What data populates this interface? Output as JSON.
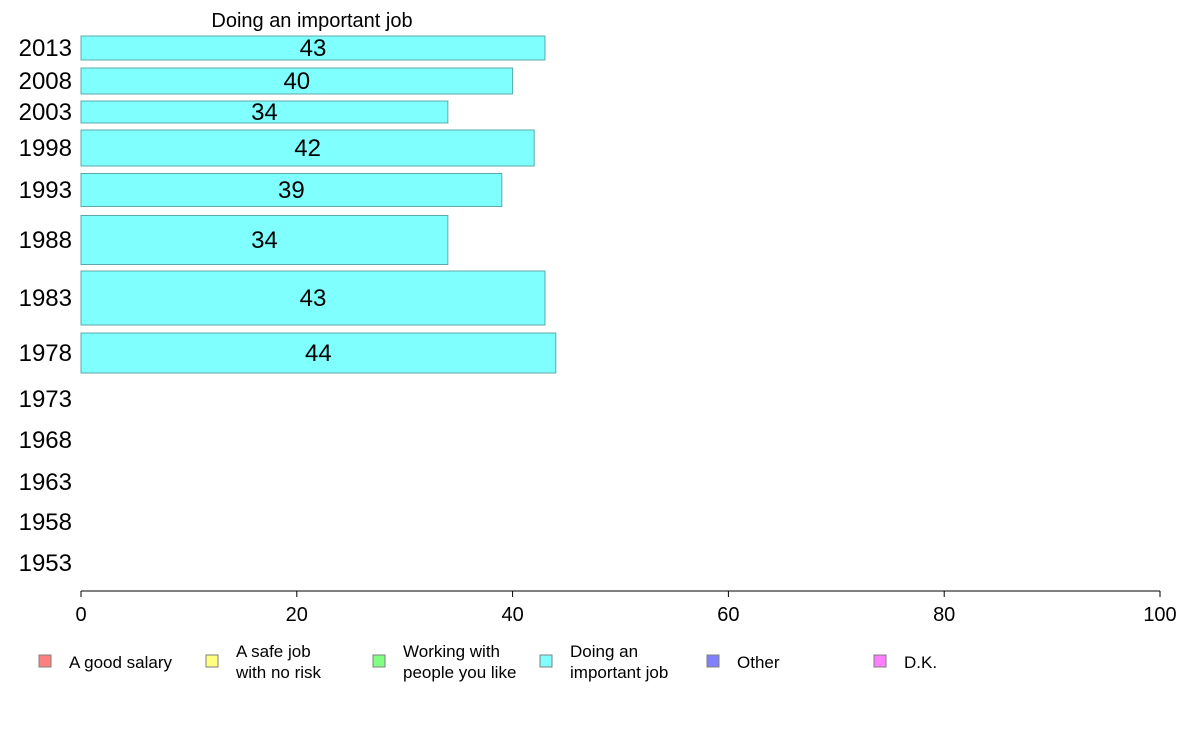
{
  "chart_data": {
    "type": "bar",
    "orientation": "horizontal",
    "title": "Doing an important job",
    "xlabel": "",
    "ylabel": "",
    "xlim": [
      0,
      100
    ],
    "x_ticks": [
      0,
      20,
      40,
      60,
      80,
      100
    ],
    "categories": [
      "2013",
      "2008",
      "2003",
      "1998",
      "1993",
      "1988",
      "1983",
      "1978",
      "1973",
      "1968",
      "1963",
      "1958",
      "1953"
    ],
    "series": [
      {
        "name": "Doing an important job",
        "color": "#80ffff",
        "values": [
          43,
          40,
          34,
          42,
          39,
          34,
          43,
          44,
          null,
          null,
          null,
          null,
          null
        ]
      }
    ],
    "grid": false,
    "legend_placement": "bottom",
    "legend": [
      {
        "label": "A good salary",
        "color": "#ff8080"
      },
      {
        "label": "A safe job\nwith no risk",
        "color": "#ffff80"
      },
      {
        "label": "Working with\npeople you like",
        "color": "#80ff80"
      },
      {
        "label": "Doing an\nimportant job",
        "color": "#80ffff"
      },
      {
        "label": "Other",
        "color": "#8080ff"
      },
      {
        "label": "D.K.",
        "color": "#ff80ff"
      }
    ]
  }
}
